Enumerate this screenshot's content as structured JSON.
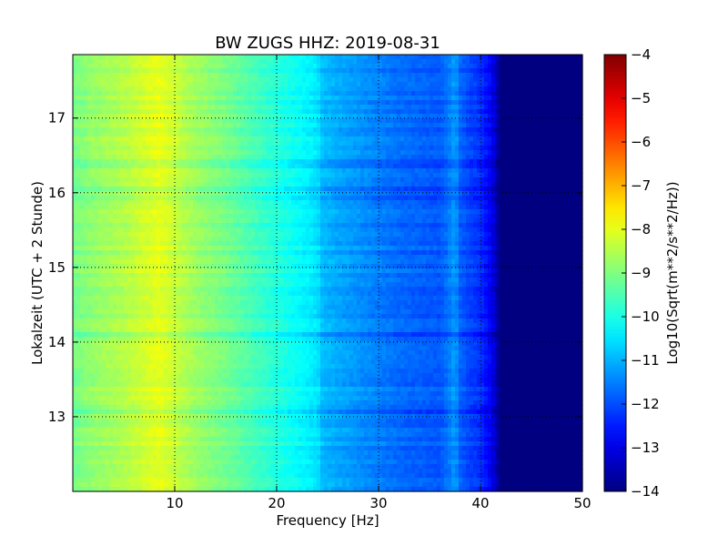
{
  "chart_data": {
    "type": "heatmap",
    "title": "BW ZUGS HHZ: 2019-08-31",
    "xlabel": "Frequency [Hz]",
    "ylabel": "Lokalzeit (UTC + 2 Stunde)",
    "xlim": [
      0,
      50
    ],
    "ylim": [
      17.85,
      12.0
    ],
    "xticks": [
      10,
      20,
      30,
      40,
      50
    ],
    "yticks": [
      13,
      14,
      15,
      16,
      17
    ],
    "grid": true,
    "colormap": "jet",
    "colorbar": {
      "label": "Log10(Sqrt(m**2/s**2/Hz))",
      "range": [
        -14,
        -4
      ],
      "ticks": [
        -4,
        -5,
        -6,
        -7,
        -8,
        -9,
        -10,
        -11,
        -12,
        -13,
        -14
      ]
    },
    "spectrum_profile": {
      "frequency_hz": [
        0,
        2,
        5,
        7,
        8.5,
        10,
        12,
        15,
        18,
        20,
        22,
        24,
        24.5,
        26,
        28,
        30,
        32,
        34,
        36,
        37,
        37.5,
        38,
        39,
        40,
        41,
        41.5,
        42,
        43,
        50
      ],
      "log10_amplitude": [
        -9.1,
        -8.8,
        -8.5,
        -8.2,
        -8.0,
        -8.3,
        -8.7,
        -9.1,
        -9.6,
        -9.9,
        -10.2,
        -10.5,
        -10.9,
        -11.1,
        -11.3,
        -11.5,
        -11.7,
        -11.8,
        -11.9,
        -11.5,
        -11.2,
        -11.8,
        -12.1,
        -12.3,
        -12.8,
        -13.4,
        -14.0,
        -14.0,
        -14.0
      ]
    }
  }
}
